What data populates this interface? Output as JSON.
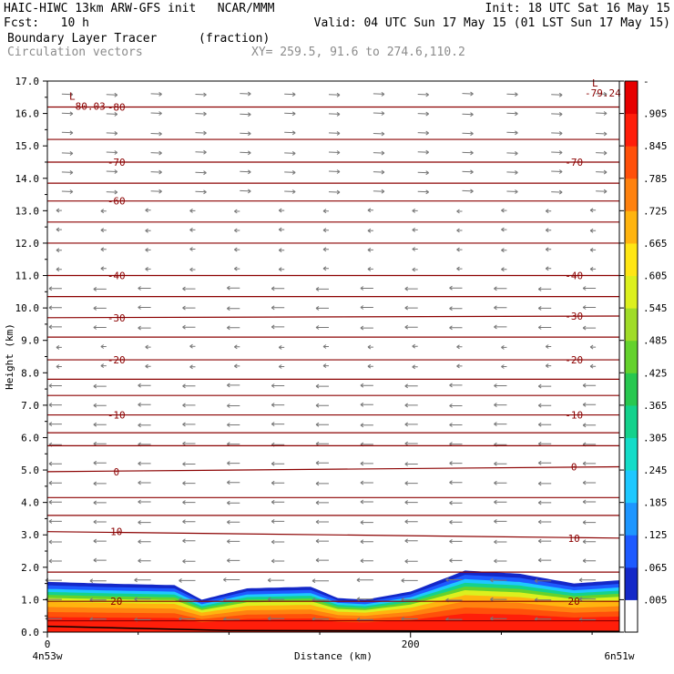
{
  "header": {
    "line1_left": "HAIC-HIWC 13km ARW-GFS init   NCAR/MMM",
    "line1_right": "Init: 18 UTC Sat 16 May 15",
    "line2_left": "Fcst:   10 h",
    "line2_right": "Valid: 04 UTC Sun 17 May 15 (01 LST Sun 17 May 15)",
    "field_name": "Boundary Layer Tracer",
    "field_units": "(fraction)",
    "vector_label": "Circulation vectors",
    "xy_label": "XY= 259.5, 91.6 to 274.6,110.2"
  },
  "colors": {
    "contour": "#8b0000",
    "vector": "#777777",
    "frame": "#000000"
  },
  "chart_data": {
    "type": "cross-section",
    "title": "Boundary Layer Tracer",
    "units": "(fraction)",
    "xlabel": "Distance (km)",
    "ylabel": "Height (km)",
    "xlim": [
      0,
      315
    ],
    "ylim": [
      0,
      17
    ],
    "xtick_labels": [
      {
        "value": 0,
        "label": "0"
      },
      {
        "value": 200,
        "label": "200"
      }
    ],
    "x_endpoints": {
      "left": "4n53w",
      "right": "6n51w"
    },
    "yticks": [
      "0.0",
      "1.0",
      "2.0",
      "3.0",
      "4.0",
      "5.0",
      "6.0",
      "7.0",
      "8.0",
      "9.0",
      "10.0",
      "11.0",
      "12.0",
      "13.0",
      "14.0",
      "15.0",
      "16.0",
      "17.0"
    ],
    "colorbar": {
      "labels": [
        ".005",
        ".065",
        ".125",
        ".185",
        ".245",
        ".305",
        ".365",
        ".425",
        ".485",
        ".545",
        ".605",
        ".665",
        ".725",
        ".785",
        ".845",
        ".905",
        "-"
      ],
      "colors": [
        "#ffffff",
        "#1428c8",
        "#1e5aff",
        "#1e96ff",
        "#1ec8ff",
        "#14dcc8",
        "#14d28c",
        "#28c850",
        "#64d22d",
        "#a0dc28",
        "#dcf01e",
        "#ffe614",
        "#ffb40f",
        "#ff820f",
        "#ff500a",
        "#ff1e0a",
        "#e60000"
      ]
    },
    "tracer_top_height_km": [
      {
        "x": 0,
        "h": 1.55
      },
      {
        "x": 30,
        "h": 1.5
      },
      {
        "x": 70,
        "h": 1.45
      },
      {
        "x": 85,
        "h": 1.0
      },
      {
        "x": 110,
        "h": 1.35
      },
      {
        "x": 145,
        "h": 1.4
      },
      {
        "x": 160,
        "h": 1.05
      },
      {
        "x": 175,
        "h": 1.0
      },
      {
        "x": 200,
        "h": 1.25
      },
      {
        "x": 230,
        "h": 1.9
      },
      {
        "x": 260,
        "h": 1.8
      },
      {
        "x": 290,
        "h": 1.5
      },
      {
        "x": 315,
        "h": 1.6
      }
    ],
    "temperature_contours": [
      {
        "label": "-80",
        "heights": [
          16.2,
          16.2
        ]
      },
      {
        "label": "-70",
        "heights": [
          14.5,
          14.5
        ]
      },
      {
        "label": "-60",
        "heights": [
          13.3,
          13.3
        ]
      },
      {
        "label": "-40",
        "heights": [
          11.0,
          11.0
        ]
      },
      {
        "label": "-30",
        "heights": [
          9.7,
          9.75
        ]
      },
      {
        "label": "-20",
        "heights": [
          8.4,
          8.4
        ]
      },
      {
        "label": "-10",
        "heights": [
          6.7,
          6.7
        ]
      },
      {
        "label": "0",
        "heights": [
          4.95,
          5.1
        ]
      },
      {
        "label": "10",
        "heights": [
          3.1,
          2.9
        ]
      },
      {
        "label": "20",
        "heights": [
          0.95,
          0.95
        ]
      }
    ],
    "extra_contour_heights_km": [
      15.2,
      13.85,
      12.65,
      12.0,
      10.35,
      9.1,
      7.8,
      7.3,
      6.15,
      5.75,
      4.15,
      3.6,
      1.85,
      0.35
    ],
    "extrema": [
      {
        "mark": "L",
        "value": "-80.03",
        "x": 5,
        "h": 16.2
      },
      {
        "mark": "L",
        "value": "-79.24",
        "x": 315,
        "h": 16.6
      }
    ]
  }
}
